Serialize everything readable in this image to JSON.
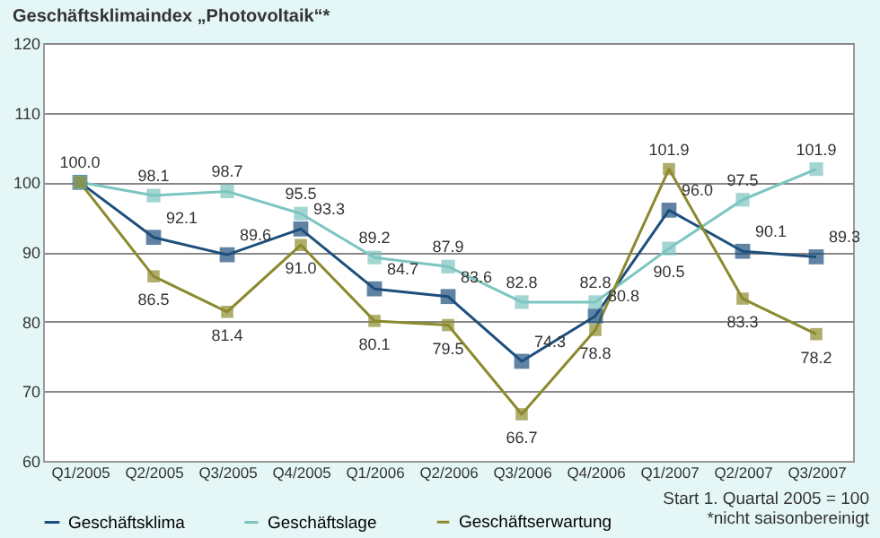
{
  "chart_data": {
    "type": "line",
    "title": "Geschäftsklimaindex „Photovoltaik“*",
    "categories": [
      "Q1/2005",
      "Q2/2005",
      "Q3/2005",
      "Q4/2005",
      "Q1/2006",
      "Q2/2006",
      "Q3/2006",
      "Q4/2006",
      "Q1/2007",
      "Q2/2007",
      "Q3/2007"
    ],
    "series": [
      {
        "name": "Geschäftsklima",
        "color": "#1d4f7c",
        "values": [
          100.0,
          92.1,
          89.6,
          93.3,
          84.7,
          83.6,
          74.3,
          80.8,
          96.0,
          90.1,
          89.3
        ],
        "value_labels": [
          "100.0",
          "92.1",
          "89.6",
          "93.3",
          "84.7",
          "83.6",
          "74.3",
          "80.8",
          "96.0",
          "90.1",
          "89.3"
        ]
      },
      {
        "name": "Geschäftslage",
        "color": "#7cc5c0",
        "values": [
          100.0,
          98.1,
          98.7,
          95.5,
          89.2,
          87.9,
          82.8,
          82.8,
          90.5,
          97.5,
          101.9
        ],
        "value_labels": [
          null,
          "98.1",
          "98.7",
          "95.5",
          "89.2",
          "87.9",
          "82.8",
          "82.8",
          "90.5",
          "97.5",
          "101.9"
        ]
      },
      {
        "name": "Geschäftserwartung",
        "color": "#8c8a2e",
        "values": [
          100.0,
          86.5,
          81.4,
          91.0,
          80.1,
          79.5,
          66.7,
          78.8,
          101.9,
          83.3,
          78.2
        ],
        "value_labels": [
          null,
          "86.5",
          "81.4",
          "91.0",
          "80.1",
          "79.5",
          "66.7",
          "78.8",
          "101.9",
          "83.3",
          "78.2"
        ]
      }
    ],
    "ylim": [
      60,
      120
    ],
    "yticks": [
      60,
      70,
      80,
      90,
      100,
      110,
      120
    ],
    "grid": "y",
    "legend": "bottom",
    "marker": "square",
    "line_style": "solid",
    "annotations": [
      "Start 1. Quartal 2005 = 100",
      "*nicht saisonbereinigt"
    ]
  }
}
